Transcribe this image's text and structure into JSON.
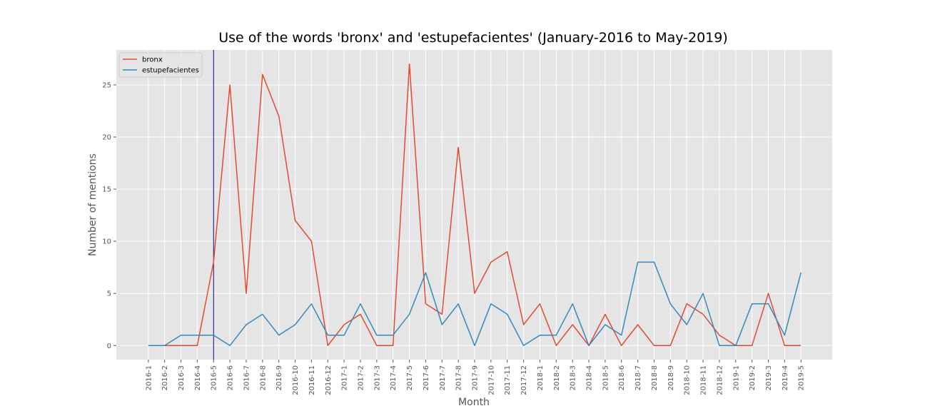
{
  "chart_data": {
    "type": "line",
    "title": "Use of the words 'bronx' and 'estupefacientes' (January-2016 to May-2019)",
    "xlabel": "Month",
    "ylabel": "Number of mentions",
    "ylim": [
      -1.35,
      28.35
    ],
    "yticks": [
      0,
      5,
      10,
      15,
      20,
      25
    ],
    "grid": true,
    "legend": "top-left",
    "background": "#e5e5e5",
    "categories": [
      "2016-1",
      "2016-2",
      "2016-3",
      "2016-4",
      "2016-5",
      "2016-6",
      "2016-7",
      "2016-8",
      "2016-9",
      "2016-10",
      "2016-11",
      "2016-12",
      "2017-1",
      "2017-2",
      "2017-3",
      "2017-4",
      "2017-5",
      "2017-6",
      "2017-7",
      "2017-8",
      "2017-9",
      "2017-10",
      "2017-11",
      "2017-12",
      "2018-1",
      "2018-2",
      "2018-3",
      "2018-4",
      "2018-5",
      "2018-6",
      "2018-7",
      "2018-8",
      "2018-9",
      "2018-10",
      "2018-11",
      "2018-12",
      "2019-1",
      "2019-2",
      "2019-3",
      "2019-4",
      "2019-5"
    ],
    "series": [
      {
        "name": "bronx",
        "color": "#e24a33",
        "values": [
          0,
          0,
          0,
          0,
          8,
          25,
          5,
          26,
          22,
          12,
          10,
          0,
          2,
          3,
          0,
          0,
          27,
          4,
          3,
          19,
          5,
          8,
          9,
          2,
          4,
          0,
          2,
          0,
          3,
          0,
          2,
          0,
          0,
          4,
          3,
          1,
          0,
          0,
          5,
          0,
          0
        ]
      },
      {
        "name": "estupefacientes",
        "color": "#348abd",
        "values": [
          0,
          0,
          1,
          1,
          1,
          0,
          2,
          3,
          1,
          2,
          4,
          1,
          1,
          4,
          1,
          1,
          3,
          7,
          2,
          4,
          0,
          4,
          3,
          0,
          1,
          1,
          4,
          0,
          2,
          1,
          8,
          8,
          4,
          2,
          5,
          0,
          0,
          4,
          4,
          1,
          7
        ]
      }
    ],
    "vertical_marker": {
      "category": "2016-5",
      "color": "#000080"
    }
  }
}
